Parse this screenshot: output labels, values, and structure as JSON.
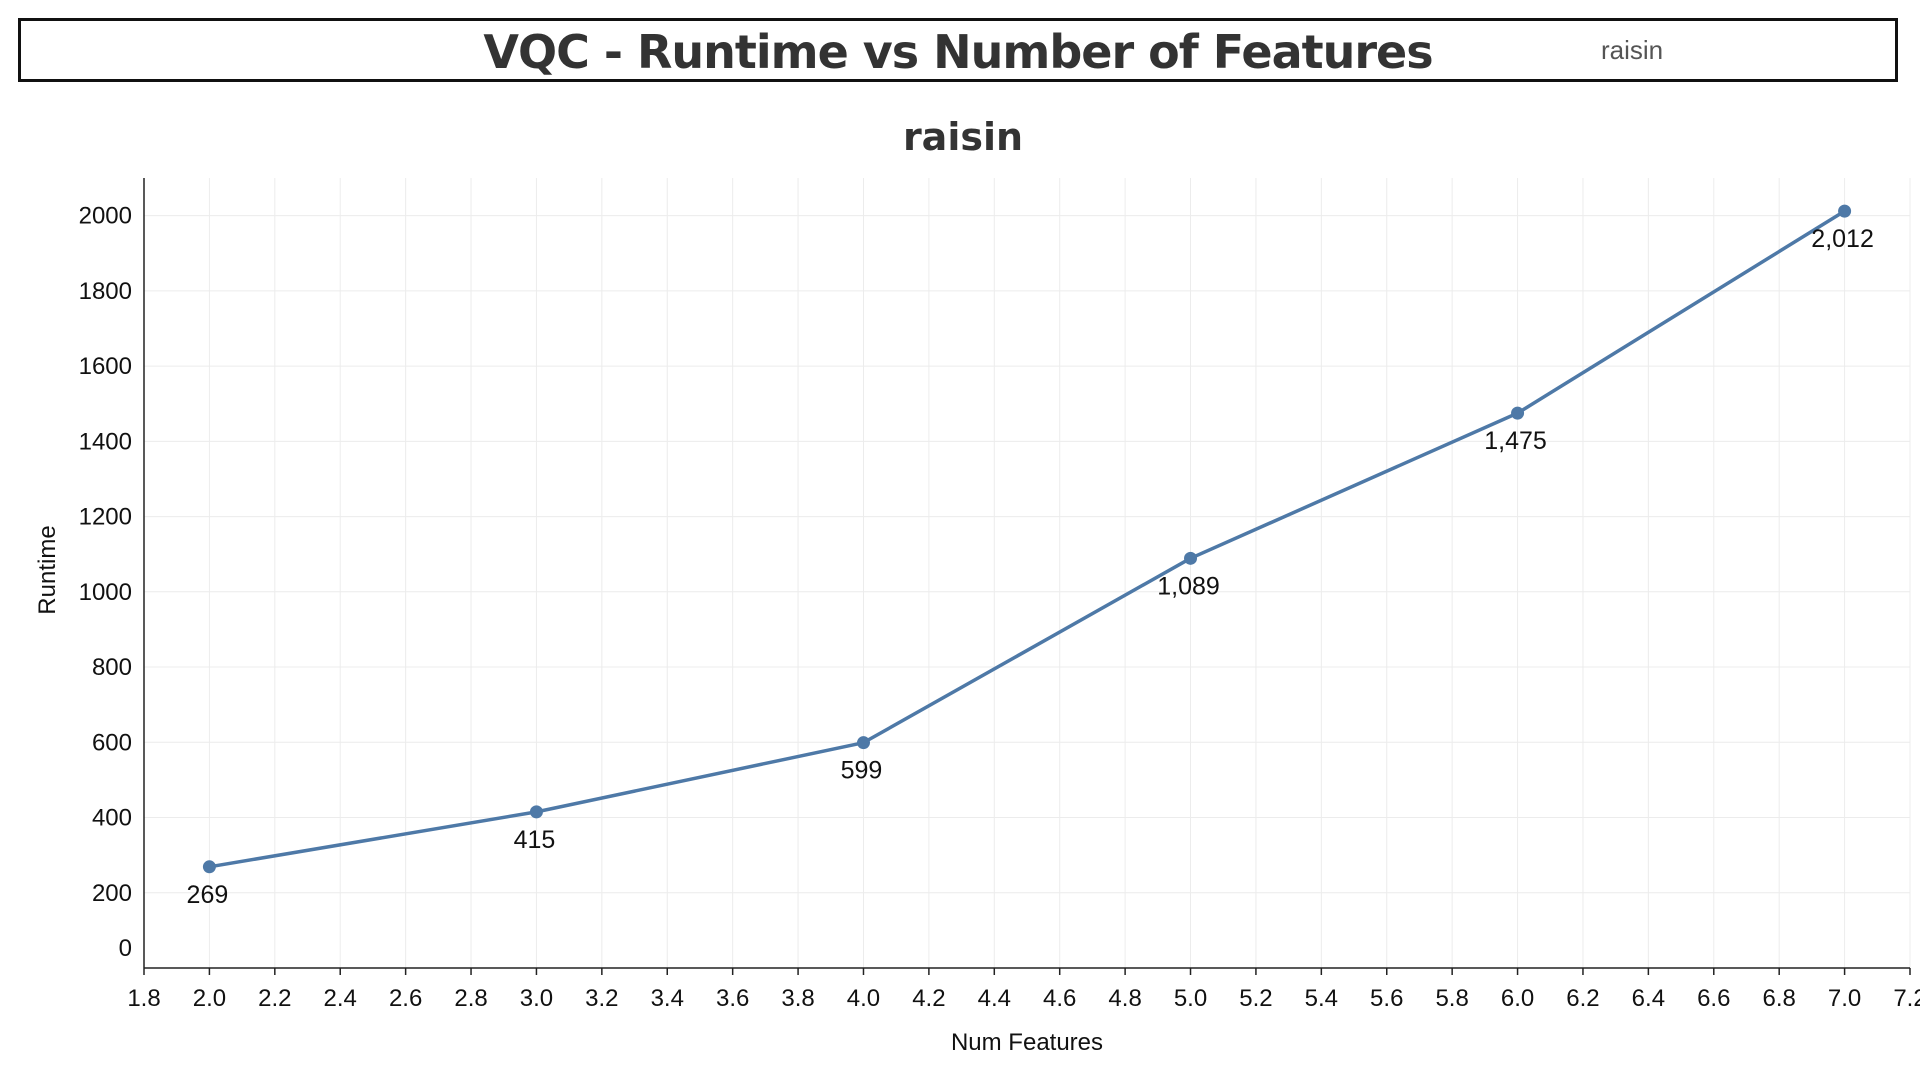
{
  "header": {
    "title": "VQC - Runtime vs Number of Features",
    "filter_label": "raisin"
  },
  "colors": {
    "series": "#4e79a7",
    "text": "#333333"
  },
  "chart_data": {
    "type": "line",
    "title": "raisin",
    "xlabel": "Num Features",
    "ylabel": "Runtime",
    "xlim": [
      1.8,
      7.2
    ],
    "ylim": [
      0,
      2100
    ],
    "x_ticks": [
      "1.8",
      "2.0",
      "2.2",
      "2.4",
      "2.6",
      "2.8",
      "3.0",
      "3.2",
      "3.4",
      "3.6",
      "3.8",
      "4.0",
      "4.2",
      "4.4",
      "4.6",
      "4.8",
      "5.0",
      "5.2",
      "5.4",
      "5.6",
      "5.8",
      "6.0",
      "6.2",
      "6.4",
      "6.6",
      "6.8",
      "7.0",
      "7.2"
    ],
    "y_ticks": [
      "0",
      "200",
      "400",
      "600",
      "800",
      "1000",
      "1200",
      "1400",
      "1600",
      "1800",
      "2000"
    ],
    "grid": true,
    "series": [
      {
        "name": "Runtime",
        "x": [
          2.0,
          3.0,
          4.0,
          5.0,
          6.0,
          7.0
        ],
        "values": [
          269,
          415,
          599,
          1089,
          1475,
          2012
        ],
        "labels": [
          "269",
          "415",
          "599",
          "1,089",
          "1,475",
          "2,012"
        ]
      }
    ]
  }
}
